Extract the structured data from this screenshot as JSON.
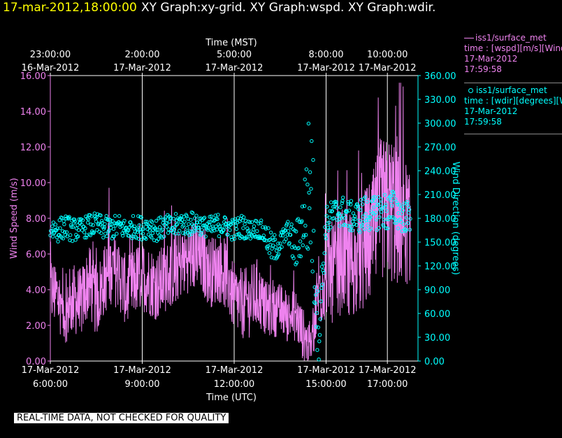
{
  "header": {
    "time_label": "17-mar-2012,18:00:00",
    "graphs_label": "XY Graph:xy-grid.  XY Graph:wspd.  XY Graph:wdir."
  },
  "legend": {
    "items": [
      {
        "marker": "line",
        "name": "iss1/surface_met",
        "desc": "time : [wspd][m/s][Wind",
        "date": "17-Mar-2012",
        "time": "17:59:58",
        "color": "#ee82ee"
      },
      {
        "marker": "circle",
        "name": "iss1/surface_met",
        "desc": "time : [wdir][degrees][W",
        "date": "17-Mar-2012",
        "time": "17:59:58",
        "color": "#00ffff"
      }
    ]
  },
  "footer": {
    "quality_note": "REAL-TIME DATA, NOT CHECKED FOR QUALITY"
  },
  "chart_data": {
    "type": "line",
    "top_axis": {
      "title": "Time (MST)",
      "ticks": [
        {
          "x": 0,
          "time": "23:00:00",
          "date": "16-Mar-2012"
        },
        {
          "x": 3,
          "time": "2:00:00",
          "date": "17-Mar-2012"
        },
        {
          "x": 6,
          "time": "5:00:00",
          "date": "17-Mar-2012"
        },
        {
          "x": 9,
          "time": "8:00:00",
          "date": "17-Mar-2012"
        },
        {
          "x": 11,
          "time": "10:00:00",
          "date": "17-Mar-2012"
        }
      ]
    },
    "bottom_axis": {
      "title": "Time (UTC)",
      "ticks": [
        {
          "x": 0,
          "date": "17-Mar-2012",
          "time": "6:00:00"
        },
        {
          "x": 3,
          "date": "17-Mar-2012",
          "time": "9:00:00"
        },
        {
          "x": 6,
          "date": "17-Mar-2012",
          "time": "12:00:00"
        },
        {
          "x": 9,
          "date": "17-Mar-2012",
          "time": "15:00:00"
        },
        {
          "x": 11,
          "date": "17-Mar-2012",
          "time": "17:00:00"
        }
      ]
    },
    "xlim": [
      0,
      12.0
    ],
    "y_left": {
      "label": "Wind Speed (m/s)",
      "range": [
        0,
        16
      ],
      "ticks": [
        "0.00",
        "2.00",
        "4.00",
        "6.00",
        "8.00",
        "10.00",
        "12.00",
        "14.00",
        "16.00"
      ],
      "color": "#ee82ee"
    },
    "y_right": {
      "label": "Wind Direction (degrees)",
      "range": [
        0,
        360
      ],
      "ticks": [
        "0.00",
        "30.00",
        "60.00",
        "90.00",
        "120.00",
        "150.00",
        "180.00",
        "210.00",
        "240.00",
        "270.00",
        "300.00",
        "330.00",
        "360.00"
      ],
      "color": "#00ffff"
    },
    "grid": "vertical",
    "series": [
      {
        "name": "iss1/surface_met wspd",
        "axis": "left",
        "style": "line",
        "color": "#ee82ee",
        "x": [
          0,
          0.25,
          0.5,
          0.75,
          1,
          1.25,
          1.5,
          1.75,
          2,
          2.25,
          2.5,
          2.75,
          3,
          3.25,
          3.5,
          3.75,
          4,
          4.25,
          4.5,
          4.75,
          5,
          5.25,
          5.5,
          5.75,
          6,
          6.25,
          6.5,
          6.75,
          7,
          7.25,
          7.5,
          7.75,
          8,
          8.25,
          8.5,
          8.75,
          9,
          9.25,
          9.5,
          9.75,
          10,
          10.25,
          10.5,
          10.75,
          11,
          11.25,
          11.5,
          11.75
        ],
        "mean": [
          4,
          3.6,
          2.5,
          3.5,
          3.2,
          4.5,
          3.3,
          4.5,
          5.2,
          4.8,
          3.8,
          4.5,
          4.8,
          4.5,
          4.2,
          4.7,
          5,
          5.5,
          5.8,
          5.9,
          5.5,
          5,
          5.3,
          4.8,
          3.5,
          3.2,
          3.3,
          3.8,
          3,
          2.8,
          2.9,
          2.5,
          2.6,
          1.5,
          0.7,
          4,
          4.8,
          5,
          5.6,
          5.5,
          5.4,
          6.2,
          6.8,
          8.5,
          8.5,
          8.5,
          8.2,
          7.2
        ],
        "spread": [
          2,
          2,
          1.5,
          2,
          2,
          2,
          2,
          2,
          2,
          2,
          2,
          2,
          2,
          2,
          2,
          2,
          2,
          2,
          2,
          2,
          2,
          2,
          2,
          2,
          2,
          2,
          2,
          2,
          1.5,
          1.5,
          1.5,
          1.5,
          1.5,
          1.5,
          1,
          2.5,
          2.5,
          3,
          3,
          3,
          3,
          3.5,
          3.5,
          4,
          4,
          4.5,
          4,
          3
        ]
      },
      {
        "name": "iss1/surface_met wdir",
        "axis": "right",
        "style": "circles",
        "color": "#00ffff",
        "x": [
          0,
          0.25,
          0.5,
          0.75,
          1,
          1.25,
          1.5,
          1.75,
          2,
          2.25,
          2.5,
          2.75,
          3,
          3.25,
          3.5,
          3.75,
          4,
          4.25,
          4.5,
          4.75,
          5,
          5.25,
          5.5,
          5.75,
          6,
          6.25,
          6.5,
          6.75,
          7,
          7.25,
          7.5,
          7.75,
          8,
          8.25,
          8.5,
          8.75,
          9,
          9.25,
          9.5,
          9.75,
          10,
          10.25,
          10.5,
          10.75,
          11,
          11.25,
          11.5,
          11.75
        ],
        "mean": [
          168,
          165,
          170,
          165,
          168,
          170,
          172,
          168,
          168,
          170,
          165,
          170,
          168,
          170,
          165,
          170,
          168,
          175,
          172,
          175,
          170,
          168,
          172,
          170,
          165,
          170,
          165,
          168,
          160,
          140,
          148,
          165,
          140,
          175,
          230,
          30,
          175,
          185,
          190,
          182,
          182,
          185,
          185,
          190,
          188,
          192,
          182,
          182
        ],
        "spread": [
          15,
          15,
          15,
          15,
          12,
          15,
          15,
          15,
          15,
          15,
          12,
          15,
          15,
          15,
          15,
          15,
          15,
          15,
          15,
          15,
          12,
          15,
          15,
          12,
          15,
          15,
          12,
          12,
          15,
          20,
          15,
          12,
          30,
          40,
          120,
          40,
          20,
          20,
          20,
          20,
          20,
          25,
          20,
          25,
          25,
          25,
          20,
          20
        ]
      }
    ]
  }
}
